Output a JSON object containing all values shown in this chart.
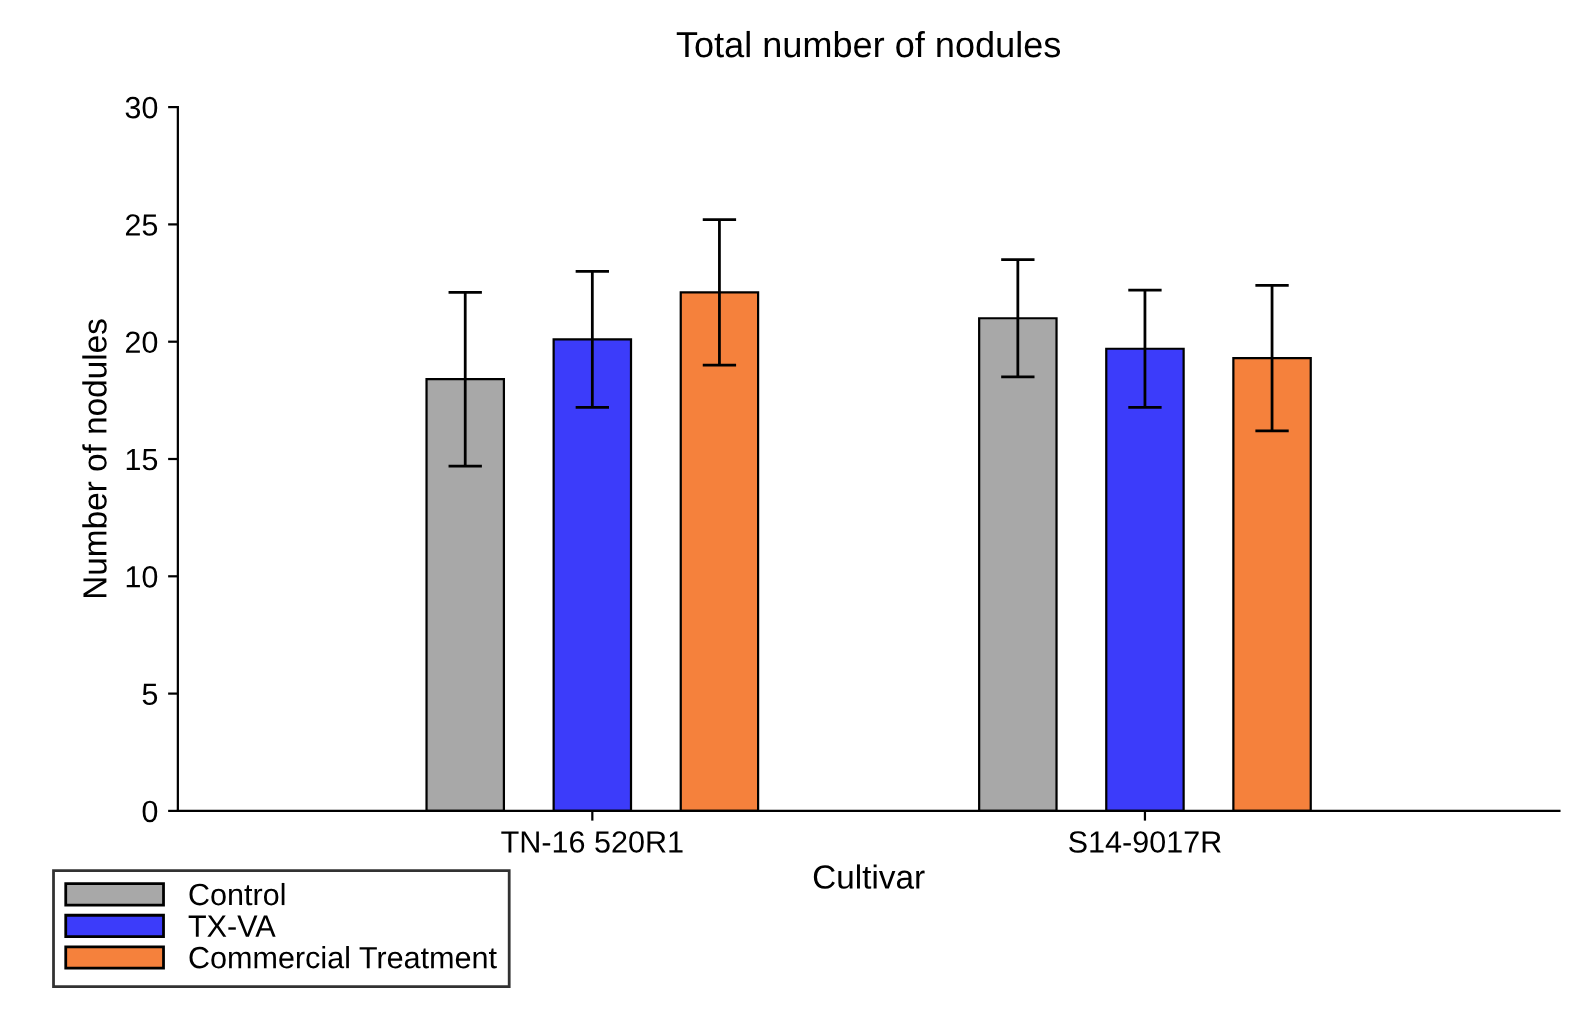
{
  "chart_data": {
    "type": "bar",
    "title": "Total number of nodules",
    "xlabel": "Cultivar",
    "ylabel": "Number of nodules",
    "categories": [
      "TN-16 520R1",
      "S14-9017R"
    ],
    "series": [
      {
        "name": "Control",
        "color": "#a8a8a8",
        "values": [
          18.4,
          21.0
        ],
        "errors": [
          3.7,
          2.5
        ]
      },
      {
        "name": "TX-VA",
        "color": "#3c3cfa",
        "values": [
          20.1,
          19.7
        ],
        "errors": [
          2.9,
          2.5
        ]
      },
      {
        "name": "Commercial Treatment",
        "color": "#f5813c",
        "values": [
          22.1,
          19.3
        ],
        "errors": [
          3.1,
          3.1
        ]
      }
    ],
    "ylim": [
      0,
      30
    ],
    "yticks": [
      0,
      5,
      10,
      15,
      20,
      25,
      30
    ],
    "grid": false,
    "legend": "bottom left"
  }
}
